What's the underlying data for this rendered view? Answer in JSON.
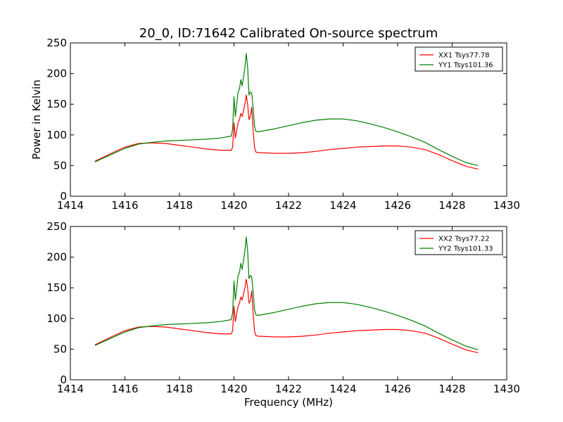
{
  "chart_data": {
    "type": "line",
    "title": "20_0, ID:71642 Calibrated On-source spectrum",
    "xlabel": "Frequency (MHz)",
    "ylabel": "Power in Kelvin",
    "xlim": [
      1414,
      1430
    ],
    "ylim": [
      0,
      250
    ],
    "xticks": [
      1414,
      1416,
      1418,
      1420,
      1422,
      1424,
      1426,
      1428,
      1430
    ],
    "yticks": [
      0,
      50,
      100,
      150,
      200,
      250
    ],
    "grid": false,
    "legend_position": "top-right",
    "panels": [
      {
        "series": [
          {
            "name": "XX1 Tsys77.78",
            "color": "#ff0000",
            "x": [
              1414.9,
              1415.5,
              1416.0,
              1416.5,
              1417.0,
              1417.5,
              1418.0,
              1418.5,
              1419.0,
              1419.5,
              1419.9,
              1419.95,
              1420.0,
              1420.05,
              1420.1,
              1420.15,
              1420.2,
              1420.25,
              1420.3,
              1420.35,
              1420.4,
              1420.45,
              1420.5,
              1420.55,
              1420.6,
              1420.65,
              1420.7,
              1420.75,
              1420.8,
              1420.9,
              1421.0,
              1421.5,
              1422.0,
              1422.5,
              1423.0,
              1423.5,
              1424.0,
              1424.5,
              1425.0,
              1425.5,
              1426.0,
              1426.5,
              1427.0,
              1427.5,
              1428.0,
              1428.5,
              1428.95
            ],
            "y": [
              57,
              70,
              80,
              86,
              87,
              86,
              83,
              80,
              77,
              75,
              75,
              80,
              120,
              95,
              108,
              120,
              125,
              135,
              130,
              140,
              150,
              165,
              150,
              125,
              130,
              145,
              110,
              80,
              72,
              71,
              71,
              70,
              70,
              71,
              73,
              76,
              78,
              80,
              81,
              82,
              82,
              80,
              76,
              68,
              58,
              49,
              44
            ]
          },
          {
            "name": "YY1 Tsys101.36",
            "color": "#008000",
            "x": [
              1414.9,
              1415.5,
              1416.0,
              1416.5,
              1417.0,
              1417.5,
              1418.0,
              1418.5,
              1419.0,
              1419.5,
              1419.9,
              1419.95,
              1420.0,
              1420.05,
              1420.1,
              1420.15,
              1420.2,
              1420.25,
              1420.3,
              1420.35,
              1420.4,
              1420.45,
              1420.5,
              1420.55,
              1420.6,
              1420.65,
              1420.7,
              1420.75,
              1420.8,
              1420.9,
              1421.0,
              1421.5,
              1422.0,
              1422.5,
              1423.0,
              1423.5,
              1424.0,
              1424.5,
              1425.0,
              1425.5,
              1426.0,
              1426.5,
              1427.0,
              1427.5,
              1428.0,
              1428.5,
              1428.95
            ],
            "y": [
              56,
              68,
              78,
              85,
              88,
              90,
              91,
              92,
              93,
              95,
              98,
              110,
              162,
              130,
              150,
              170,
              175,
              190,
              180,
              195,
              210,
              233,
              210,
              165,
              170,
              168,
              145,
              115,
              106,
              105,
              106,
              110,
              115,
              120,
              124,
              126,
              126,
              123,
              118,
              112,
              105,
              97,
              88,
              76,
              65,
              55,
              50
            ]
          }
        ]
      },
      {
        "series": [
          {
            "name": "XX2 Tsys77.22",
            "color": "#ff0000",
            "x": [
              1414.9,
              1415.5,
              1416.0,
              1416.5,
              1417.0,
              1417.5,
              1418.0,
              1418.5,
              1419.0,
              1419.5,
              1419.9,
              1419.95,
              1420.0,
              1420.05,
              1420.1,
              1420.15,
              1420.2,
              1420.25,
              1420.3,
              1420.35,
              1420.4,
              1420.45,
              1420.5,
              1420.55,
              1420.6,
              1420.65,
              1420.7,
              1420.75,
              1420.8,
              1420.9,
              1421.0,
              1421.5,
              1422.0,
              1422.5,
              1423.0,
              1423.5,
              1424.0,
              1424.5,
              1425.0,
              1425.5,
              1426.0,
              1426.5,
              1427.0,
              1427.5,
              1428.0,
              1428.5,
              1428.95
            ],
            "y": [
              57,
              70,
              80,
              86,
              87,
              86,
              83,
              80,
              77,
              75,
              75,
              80,
              120,
              95,
              108,
              120,
              125,
              135,
              130,
              140,
              150,
              164,
              150,
              125,
              128,
              145,
              110,
              80,
              72,
              71,
              71,
              70,
              70,
              71,
              73,
              76,
              78,
              80,
              81,
              82,
              82,
              80,
              76,
              68,
              58,
              49,
              44
            ]
          },
          {
            "name": "YY2 Tsys101.33",
            "color": "#008000",
            "x": [
              1414.9,
              1415.5,
              1416.0,
              1416.5,
              1417.0,
              1417.5,
              1418.0,
              1418.5,
              1419.0,
              1419.5,
              1419.9,
              1419.95,
              1420.0,
              1420.05,
              1420.1,
              1420.15,
              1420.2,
              1420.25,
              1420.3,
              1420.35,
              1420.4,
              1420.45,
              1420.5,
              1420.55,
              1420.6,
              1420.65,
              1420.7,
              1420.75,
              1420.8,
              1420.9,
              1421.0,
              1421.5,
              1422.0,
              1422.5,
              1423.0,
              1423.5,
              1424.0,
              1424.5,
              1425.0,
              1425.5,
              1426.0,
              1426.5,
              1427.0,
              1427.5,
              1428.0,
              1428.5,
              1428.95
            ],
            "y": [
              56,
              68,
              78,
              85,
              88,
              90,
              91,
              92,
              93,
              95,
              98,
              110,
              161,
              130,
              150,
              170,
              175,
              190,
              180,
              195,
              210,
              233,
              210,
              165,
              170,
              168,
              145,
              115,
              106,
              105,
              106,
              110,
              115,
              120,
              124,
              126,
              126,
              123,
              118,
              112,
              105,
              97,
              88,
              76,
              65,
              55,
              49
            ]
          }
        ]
      }
    ]
  }
}
